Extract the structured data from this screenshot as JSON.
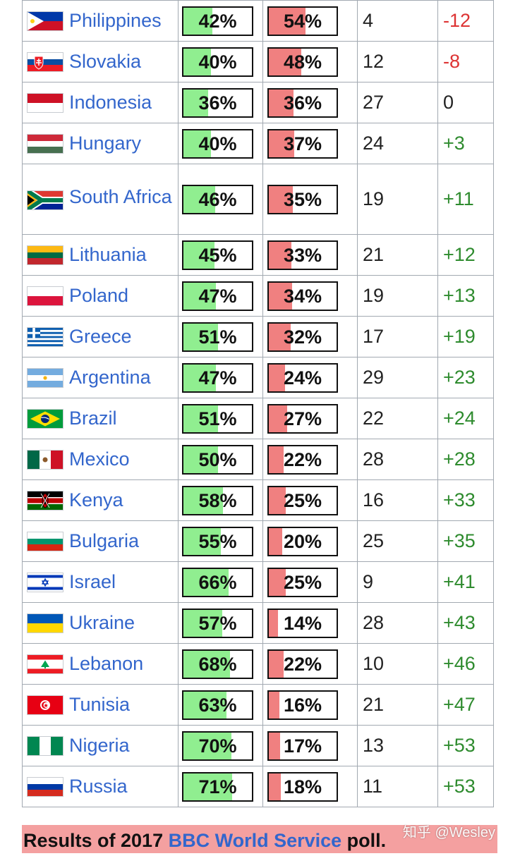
{
  "rows": [
    {
      "country": "Philippines",
      "flag": "philippines",
      "positive": 42,
      "negative": 54,
      "neutral": "4",
      "difference": "-12",
      "positive_label": "42%",
      "negative_label": "54%",
      "sign": "neg"
    },
    {
      "country": "Slovakia",
      "flag": "slovakia",
      "positive": 40,
      "negative": 48,
      "neutral": "12",
      "difference": "-8",
      "positive_label": "40%",
      "negative_label": "48%",
      "sign": "neg"
    },
    {
      "country": "Indonesia",
      "flag": "indonesia",
      "positive": 36,
      "negative": 36,
      "neutral": "27",
      "difference": "0",
      "positive_label": "36%",
      "negative_label": "36%",
      "sign": "zero"
    },
    {
      "country": "Hungary",
      "flag": "hungary",
      "positive": 40,
      "negative": 37,
      "neutral": "24",
      "difference": "+3",
      "positive_label": "40%",
      "negative_label": "37%",
      "sign": "pos"
    },
    {
      "country": "South Africa",
      "flag": "south-africa",
      "positive": 46,
      "negative": 35,
      "neutral": "19",
      "difference": "+11",
      "positive_label": "46%",
      "negative_label": "35%",
      "sign": "pos",
      "tall": true
    },
    {
      "country": "Lithuania",
      "flag": "lithuania",
      "positive": 45,
      "negative": 33,
      "neutral": "21",
      "difference": "+12",
      "positive_label": "45%",
      "negative_label": "33%",
      "sign": "pos"
    },
    {
      "country": "Poland",
      "flag": "poland",
      "positive": 47,
      "negative": 34,
      "neutral": "19",
      "difference": "+13",
      "positive_label": "47%",
      "negative_label": "34%",
      "sign": "pos"
    },
    {
      "country": "Greece",
      "flag": "greece",
      "positive": 51,
      "negative": 32,
      "neutral": "17",
      "difference": "+19",
      "positive_label": "51%",
      "negative_label": "32%",
      "sign": "pos"
    },
    {
      "country": "Argentina",
      "flag": "argentina",
      "positive": 47,
      "negative": 24,
      "neutral": "29",
      "difference": "+23",
      "positive_label": "47%",
      "negative_label": "24%",
      "sign": "pos"
    },
    {
      "country": "Brazil",
      "flag": "brazil",
      "positive": 51,
      "negative": 27,
      "neutral": "22",
      "difference": "+24",
      "positive_label": "51%",
      "negative_label": "27%",
      "sign": "pos"
    },
    {
      "country": "Mexico",
      "flag": "mexico",
      "positive": 50,
      "negative": 22,
      "neutral": "28",
      "difference": "+28",
      "positive_label": "50%",
      "negative_label": "22%",
      "sign": "pos"
    },
    {
      "country": "Kenya",
      "flag": "kenya",
      "positive": 58,
      "negative": 25,
      "neutral": "16",
      "difference": "+33",
      "positive_label": "58%",
      "negative_label": "25%",
      "sign": "pos"
    },
    {
      "country": "Bulgaria",
      "flag": "bulgaria",
      "positive": 55,
      "negative": 20,
      "neutral": "25",
      "difference": "+35",
      "positive_label": "55%",
      "negative_label": "20%",
      "sign": "pos"
    },
    {
      "country": "Israel",
      "flag": "israel",
      "positive": 66,
      "negative": 25,
      "neutral": "9",
      "difference": "+41",
      "positive_label": "66%",
      "negative_label": "25%",
      "sign": "pos"
    },
    {
      "country": "Ukraine",
      "flag": "ukraine",
      "positive": 57,
      "negative": 14,
      "neutral": "28",
      "difference": "+43",
      "positive_label": "57%",
      "negative_label": "14%",
      "sign": "pos"
    },
    {
      "country": "Lebanon",
      "flag": "lebanon",
      "positive": 68,
      "negative": 22,
      "neutral": "10",
      "difference": "+46",
      "positive_label": "68%",
      "negative_label": "22%",
      "sign": "pos"
    },
    {
      "country": "Tunisia",
      "flag": "tunisia",
      "positive": 63,
      "negative": 16,
      "neutral": "21",
      "difference": "+47",
      "positive_label": "63%",
      "negative_label": "16%",
      "sign": "pos"
    },
    {
      "country": "Nigeria",
      "flag": "nigeria",
      "positive": 70,
      "negative": 17,
      "neutral": "13",
      "difference": "+53",
      "positive_label": "70%",
      "negative_label": "17%",
      "sign": "pos"
    },
    {
      "country": "Russia",
      "flag": "russia",
      "positive": 71,
      "negative": 18,
      "neutral": "11",
      "difference": "+53",
      "positive_label": "71%",
      "negative_label": "18%",
      "sign": "pos"
    }
  ],
  "caption": {
    "prefix": "Results of 2017 ",
    "link": "BBC World Service",
    "suffix": " poll."
  },
  "watermark": "知乎 @Wesley",
  "colors": {
    "positive_fill": "#90ee90",
    "negative_fill": "#f08080",
    "link": "#3366cc",
    "diff_negative": "#dd3333",
    "diff_positive": "#2e8b2e",
    "caption_bg": "#f4a0a0"
  }
}
